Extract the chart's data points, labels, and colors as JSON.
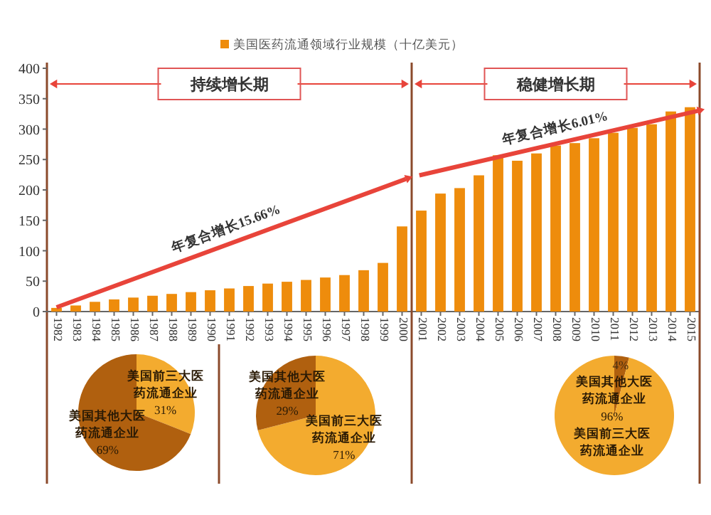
{
  "chart_data": [
    {
      "type": "bar",
      "x": [
        1982,
        1983,
        1984,
        1985,
        1986,
        1987,
        1988,
        1989,
        1990,
        1991,
        1992,
        1993,
        1994,
        1995,
        1996,
        1997,
        1998,
        1999,
        2000,
        2001,
        2002,
        2003,
        2004,
        2005,
        2006,
        2007,
        2008,
        2009,
        2010,
        2011,
        2012,
        2013,
        2014,
        2015
      ],
      "series": [
        {
          "name": "美国医药流通领域行业规模（十亿美元）",
          "color": "#ee8c0c",
          "values": [
            6,
            10,
            16,
            20,
            23,
            26,
            29,
            32,
            35,
            38,
            42,
            46,
            49,
            52,
            56,
            60,
            68,
            80,
            140,
            166,
            194,
            203,
            224,
            257,
            248,
            260,
            273,
            277,
            285,
            294,
            302,
            308,
            329,
            336
          ]
        },
        {
          "type": "line",
          "color": "#e8443a",
          "x": [
            1982,
            2000.2
          ],
          "values": [
            7,
            218
          ]
        },
        {
          "type": "line",
          "color": "#e8443a",
          "x": [
            2000.9,
            2015.4
          ],
          "values": [
            224,
            330
          ]
        }
      ],
      "xlim": [
        1981.5,
        2015.5
      ],
      "xticks": [
        1982,
        1983,
        1984,
        1985,
        1986,
        1987,
        1988,
        1989,
        1990,
        1991,
        1992,
        1993,
        1994,
        1995,
        1996,
        1997,
        1998,
        1999,
        2000,
        2001,
        2002,
        2003,
        2004,
        2005,
        2006,
        2007,
        2008,
        2009,
        2010,
        2011,
        2012,
        2013,
        2014,
        2015
      ],
      "ylim": [
        0,
        400
      ],
      "yticks": [
        0,
        50,
        100,
        150,
        200,
        250,
        300,
        350,
        400
      ],
      "legend": "top",
      "ref_lines": [
        {
          "axis": "x",
          "value": 2000.5,
          "color": "#8b4a2b"
        },
        {
          "axis": "x",
          "value": 2015.5,
          "color": "#8b4a2b"
        }
      ],
      "annotations": [
        "持续增长期",
        "稳健增长期",
        "年复合增长15.66%",
        "年复合增长6.01%"
      ]
    },
    {
      "type": "pie",
      "categories": [
        "美国前三大医药流通企业",
        "美国其他大医药流通企业"
      ],
      "values": [
        31,
        69
      ],
      "value_labels": [
        "31%",
        "69%"
      ],
      "colors": [
        "#f3ab2f",
        "#b0600f"
      ]
    },
    {
      "type": "pie",
      "categories": [
        "美国前三大医药流通企业",
        "美国其他大医药流通企业"
      ],
      "values": [
        71,
        29
      ],
      "value_labels": [
        "71%",
        "29%"
      ],
      "colors": [
        "#f3ab2f",
        "#b0600f"
      ]
    },
    {
      "type": "pie",
      "categories": [
        "美国其他大医药流通企业",
        "美国前三大医药流通企业"
      ],
      "values": [
        4,
        96
      ],
      "value_labels": [
        "4%",
        "96%"
      ],
      "colors": [
        "#b0600f",
        "#f3ab2f"
      ]
    }
  ]
}
